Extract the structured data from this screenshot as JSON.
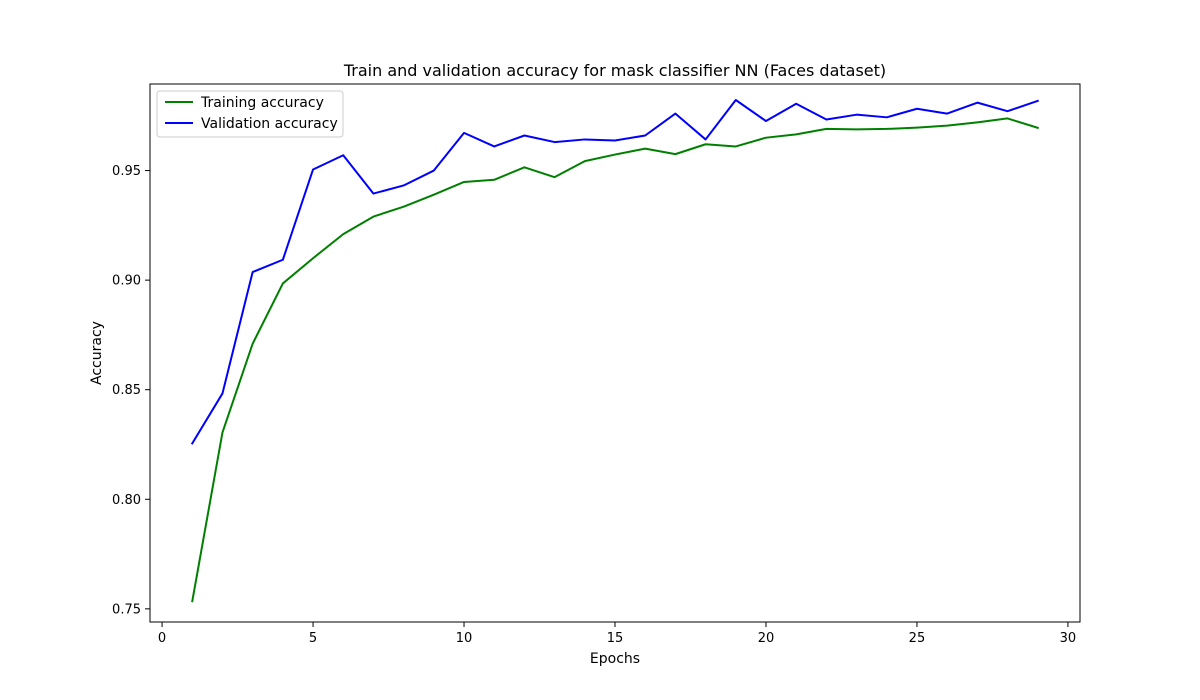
{
  "chart_data": {
    "type": "line",
    "title": "Train and validation accuracy for mask classifier NN (Faces dataset)",
    "xlabel": "Epochs",
    "ylabel": "Accuracy",
    "xlim": [
      -0.4,
      30.4
    ],
    "ylim": [
      0.744,
      0.9895
    ],
    "xticks": [
      0,
      5,
      10,
      15,
      20,
      25,
      30
    ],
    "yticks": [
      0.75,
      0.8,
      0.85,
      0.9,
      0.95
    ],
    "ytick_labels": [
      "0.75",
      "0.80",
      "0.85",
      "0.90",
      "0.95"
    ],
    "grid": false,
    "legend": "upper-left",
    "x": [
      1,
      2,
      3,
      4,
      5,
      6,
      7,
      8,
      9,
      10,
      11,
      12,
      13,
      14,
      15,
      16,
      17,
      18,
      19,
      20,
      21,
      22,
      23,
      24,
      25,
      26,
      27,
      28,
      29
    ],
    "series": [
      {
        "name": "Training accuracy",
        "color": "#008000",
        "values": [
          0.7535,
          0.8305,
          0.871,
          0.8985,
          0.91,
          0.921,
          0.929,
          0.9335,
          0.939,
          0.9448,
          0.9458,
          0.9515,
          0.947,
          0.9543,
          0.9573,
          0.96,
          0.9575,
          0.962,
          0.961,
          0.965,
          0.9665,
          0.969,
          0.9688,
          0.969,
          0.9696,
          0.9705,
          0.972,
          0.9738,
          0.9695
        ]
      },
      {
        "name": "Validation accuracy",
        "color": "#0000ff",
        "values": [
          0.8255,
          0.8483,
          0.9037,
          0.9093,
          0.9505,
          0.957,
          0.9395,
          0.9432,
          0.95,
          0.9672,
          0.961,
          0.966,
          0.963,
          0.9642,
          0.9637,
          0.966,
          0.976,
          0.9642,
          0.9822,
          0.9726,
          0.9805,
          0.9733,
          0.9755,
          0.9743,
          0.9782,
          0.976,
          0.981,
          0.9771,
          0.9818
        ]
      }
    ]
  }
}
